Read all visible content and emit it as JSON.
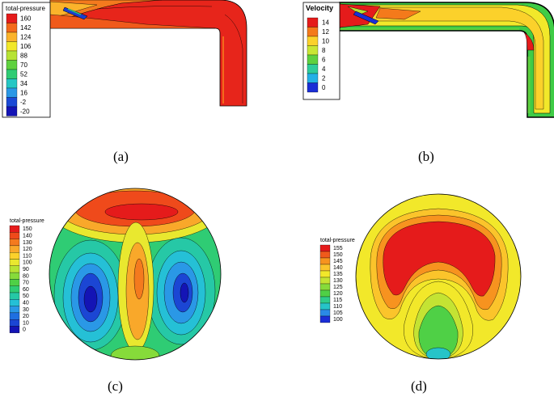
{
  "panels": {
    "a": {
      "caption": "(a)",
      "legend_title": "total-pressure",
      "legend_values": [
        "160",
        "142",
        "124",
        "106",
        "88",
        "70",
        "52",
        "34",
        "16",
        "-2",
        "-20"
      ],
      "legend_colors": [
        "#e51b1b",
        "#f46a1b",
        "#fbb32b",
        "#f2e82a",
        "#b7e334",
        "#5fd13f",
        "#2fcc74",
        "#25c7c4",
        "#2a98e6",
        "#1b4ad6",
        "#1414b5"
      ]
    },
    "b": {
      "caption": "(b)",
      "legend_title": "Velocity",
      "legend_values": [
        "14",
        "12",
        "10",
        "8",
        "6",
        "4",
        "2",
        "0"
      ],
      "legend_colors": [
        "#e51b1b",
        "#f47a1b",
        "#fbd12b",
        "#c8e634",
        "#5ed13f",
        "#2ecc9a",
        "#24b0e6",
        "#1b2ed6"
      ]
    },
    "c": {
      "caption": "(c)",
      "legend_title": "total-pressure",
      "legend_values": [
        "150",
        "140",
        "130",
        "120",
        "110",
        "100",
        "90",
        "80",
        "70",
        "60",
        "50",
        "40",
        "30",
        "20",
        "10",
        "0"
      ],
      "legend_colors": [
        "#e51b1b",
        "#ef4a1b",
        "#f47a1e",
        "#f9a82a",
        "#fbd12b",
        "#e9e82f",
        "#b7e334",
        "#86db3a",
        "#4fd046",
        "#2fcc74",
        "#26c8a6",
        "#25c0d6",
        "#2a98e6",
        "#1f6fe0",
        "#1b46d4",
        "#1414b5"
      ]
    },
    "d": {
      "caption": "(d)",
      "legend_title": "total-pressure",
      "legend_values": [
        "155",
        "150",
        "145",
        "140",
        "135",
        "130",
        "125",
        "120",
        "115",
        "110",
        "105",
        "100"
      ],
      "legend_colors": [
        "#e51b1b",
        "#f05a1b",
        "#f7931f",
        "#fbc42b",
        "#f2e82a",
        "#c4e333",
        "#86db3a",
        "#4fd046",
        "#2fcc8a",
        "#26c4c8",
        "#2a8ae6",
        "#1b2ed6"
      ]
    }
  }
}
